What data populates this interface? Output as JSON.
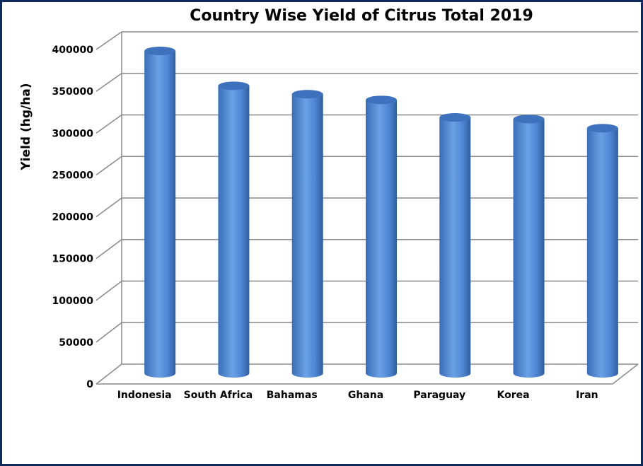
{
  "chart_data": {
    "type": "bar",
    "title": "Country Wise Yield of Citrus Total 2019",
    "xlabel": "",
    "ylabel": "Yield (hg/ha)",
    "categories": [
      "Indonesia",
      "South Africa",
      "Bahamas",
      "Ghana",
      "Paraguay",
      "Korea",
      "Iran"
    ],
    "values": [
      377000,
      335000,
      325000,
      318000,
      297000,
      295000,
      284000
    ],
    "ylim": [
      0,
      400000
    ],
    "yticks": [
      "0",
      "50000",
      "100000",
      "150000",
      "200000",
      "250000",
      "300000",
      "350000",
      "400000"
    ],
    "grid": true,
    "legend": "none",
    "bar_color": "#4f86d2"
  }
}
